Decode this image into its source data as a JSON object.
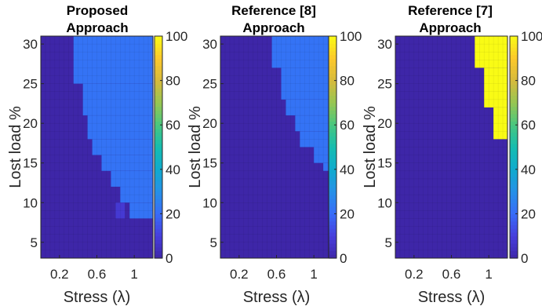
{
  "chart_data": [
    {
      "type": "heatmap",
      "title": [
        "Proposed",
        "Approach"
      ],
      "xlabel": "Stress (λ)",
      "ylabel": "Lost load %",
      "x_ticks": [
        "0.2",
        "0.6",
        "1"
      ],
      "y_ticks": [
        "5",
        "10",
        "15",
        "20",
        "25",
        "30"
      ],
      "colorbar_ticks": [
        "0",
        "20",
        "40",
        "60",
        "80",
        "100"
      ],
      "xlim": [
        0.0,
        1.2
      ],
      "ylim": [
        3,
        31
      ],
      "clim": [
        0,
        100
      ],
      "regions": [
        {
          "value": 0,
          "desc": "background"
        },
        {
          "value": 22,
          "boundary_lambda_by_lost_load": [
            {
              "lost_load_from": 8,
              "lost_load_to": 10,
              "lambda_from": 0.95
            },
            {
              "lost_load_from": 10,
              "lost_load_to": 12,
              "lambda_from": 0.85
            },
            {
              "lost_load_from": 12,
              "lost_load_to": 14,
              "lambda_from": 0.75
            },
            {
              "lost_load_from": 14,
              "lost_load_to": 16,
              "lambda_from": 0.65
            },
            {
              "lost_load_from": 16,
              "lost_load_to": 18,
              "lambda_from": 0.55
            },
            {
              "lost_load_from": 18,
              "lost_load_to": 21,
              "lambda_from": 0.5
            },
            {
              "lost_load_from": 21,
              "lost_load_to": 25,
              "lambda_from": 0.45
            },
            {
              "lost_load_from": 25,
              "lost_load_to": 31,
              "lambda_from": 0.35
            }
          ]
        },
        {
          "value": 8,
          "cell": {
            "lambda": 0.85,
            "lost_load": 9
          }
        }
      ]
    },
    {
      "type": "heatmap",
      "title": [
        "Reference [8]",
        "Approach"
      ],
      "xlabel": "Stress (λ)",
      "ylabel": "Lost load %",
      "x_ticks": [
        "0.2",
        "0.6",
        "1"
      ],
      "y_ticks": [
        "5",
        "10",
        "15",
        "20",
        "25",
        "30"
      ],
      "colorbar_ticks": [
        "0",
        "20",
        "40",
        "60",
        "80",
        "100"
      ],
      "xlim": [
        0.0,
        1.2
      ],
      "ylim": [
        3,
        31
      ],
      "clim": [
        0,
        100
      ],
      "regions": [
        {
          "value": 0,
          "desc": "background"
        },
        {
          "value": 22,
          "boundary_lambda_by_lost_load": [
            {
              "lost_load_from": 14,
              "lost_load_to": 15,
              "lambda_from": 1.1
            },
            {
              "lost_load_from": 15,
              "lost_load_to": 17,
              "lambda_from": 1.0
            },
            {
              "lost_load_from": 17,
              "lost_load_to": 19,
              "lambda_from": 0.85
            },
            {
              "lost_load_from": 19,
              "lost_load_to": 21,
              "lambda_from": 0.8
            },
            {
              "lost_load_from": 21,
              "lost_load_to": 23,
              "lambda_from": 0.7
            },
            {
              "lost_load_from": 23,
              "lost_load_to": 27,
              "lambda_from": 0.65
            },
            {
              "lost_load_from": 27,
              "lost_load_to": 31,
              "lambda_from": 0.55
            }
          ]
        }
      ]
    },
    {
      "type": "heatmap",
      "title": [
        "Reference [7]",
        "Approach"
      ],
      "xlabel": "Stress (λ)",
      "ylabel": "Lost load %",
      "x_ticks": [
        "0.2",
        "0.6",
        "1"
      ],
      "y_ticks": [
        "5",
        "10",
        "15",
        "20",
        "25",
        "30"
      ],
      "colorbar_ticks": [
        "0",
        "20",
        "40",
        "60",
        "80",
        "100"
      ],
      "xlim": [
        0.0,
        1.2
      ],
      "ylim": [
        3,
        31
      ],
      "clim": [
        0,
        100
      ],
      "regions": [
        {
          "value": 0,
          "desc": "background"
        },
        {
          "value": 100,
          "boundary_lambda_by_lost_load": [
            {
              "lost_load_from": 18,
              "lost_load_to": 22,
              "lambda_from": 1.05
            },
            {
              "lost_load_from": 22,
              "lost_load_to": 27,
              "lambda_from": 0.95
            },
            {
              "lost_load_from": 27,
              "lost_load_to": 31,
              "lambda_from": 0.85
            }
          ]
        }
      ]
    }
  ]
}
